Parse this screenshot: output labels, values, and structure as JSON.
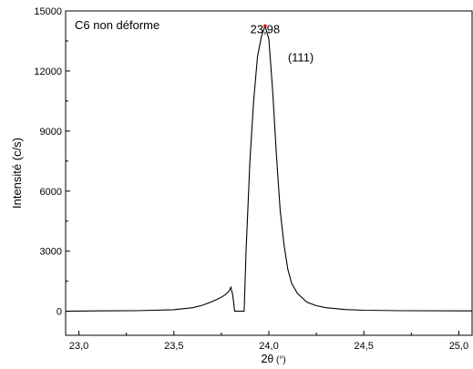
{
  "chart_data": {
    "type": "line",
    "title": "",
    "legend_text": "C6 non déforme",
    "legend_placement": "top-left",
    "xlabel_main": "2",
    "xlabel_symbol": "θ",
    "xlabel_unit": " (°)",
    "ylabel": "Intensité (c/s)",
    "xlim": [
      22.93,
      25.07
    ],
    "ylim": [
      -1200,
      15000
    ],
    "x_ticks": [
      {
        "value": 23.0,
        "label": "23,0"
      },
      {
        "value": 23.5,
        "label": "23,5"
      },
      {
        "value": 24.0,
        "label": "24,0"
      },
      {
        "value": 24.5,
        "label": "24,5"
      },
      {
        "value": 25.0,
        "label": "25,0"
      }
    ],
    "y_ticks": [
      {
        "value": 0,
        "label": "0"
      },
      {
        "value": 3000,
        "label": "3000"
      },
      {
        "value": 6000,
        "label": "6000"
      },
      {
        "value": 9000,
        "label": "9000"
      },
      {
        "value": 12000,
        "label": "12000"
      },
      {
        "value": 15000,
        "label": "15000"
      }
    ],
    "grid": false,
    "annotations": [
      {
        "text": "23,98",
        "x": 23.98,
        "y": 14250
      },
      {
        "text": "(111)",
        "x": 24.1,
        "y": 12700
      }
    ],
    "peak_marker": {
      "x": 23.98,
      "y": 14250,
      "color": "#e00000"
    },
    "series": [
      {
        "color": "#000000",
        "x": [
          22.93,
          23.1,
          23.3,
          23.5,
          23.6,
          23.65,
          23.7,
          23.74,
          23.77,
          23.79,
          23.8,
          23.81,
          23.82,
          23.86,
          23.87,
          23.88,
          23.9,
          23.92,
          23.94,
          23.96,
          23.98,
          24.0,
          24.02,
          24.04,
          24.06,
          24.08,
          24.1,
          24.12,
          24.15,
          24.2,
          24.25,
          24.3,
          24.4,
          24.5,
          24.7,
          25.07
        ],
        "y": [
          0,
          20,
          30,
          80,
          180,
          300,
          480,
          650,
          820,
          1000,
          1200,
          800,
          0,
          0,
          0,
          3000,
          7500,
          10500,
          12700,
          13700,
          14250,
          13600,
          11000,
          7800,
          5000,
          3300,
          2100,
          1400,
          900,
          450,
          280,
          180,
          90,
          50,
          30,
          20
        ]
      }
    ]
  }
}
